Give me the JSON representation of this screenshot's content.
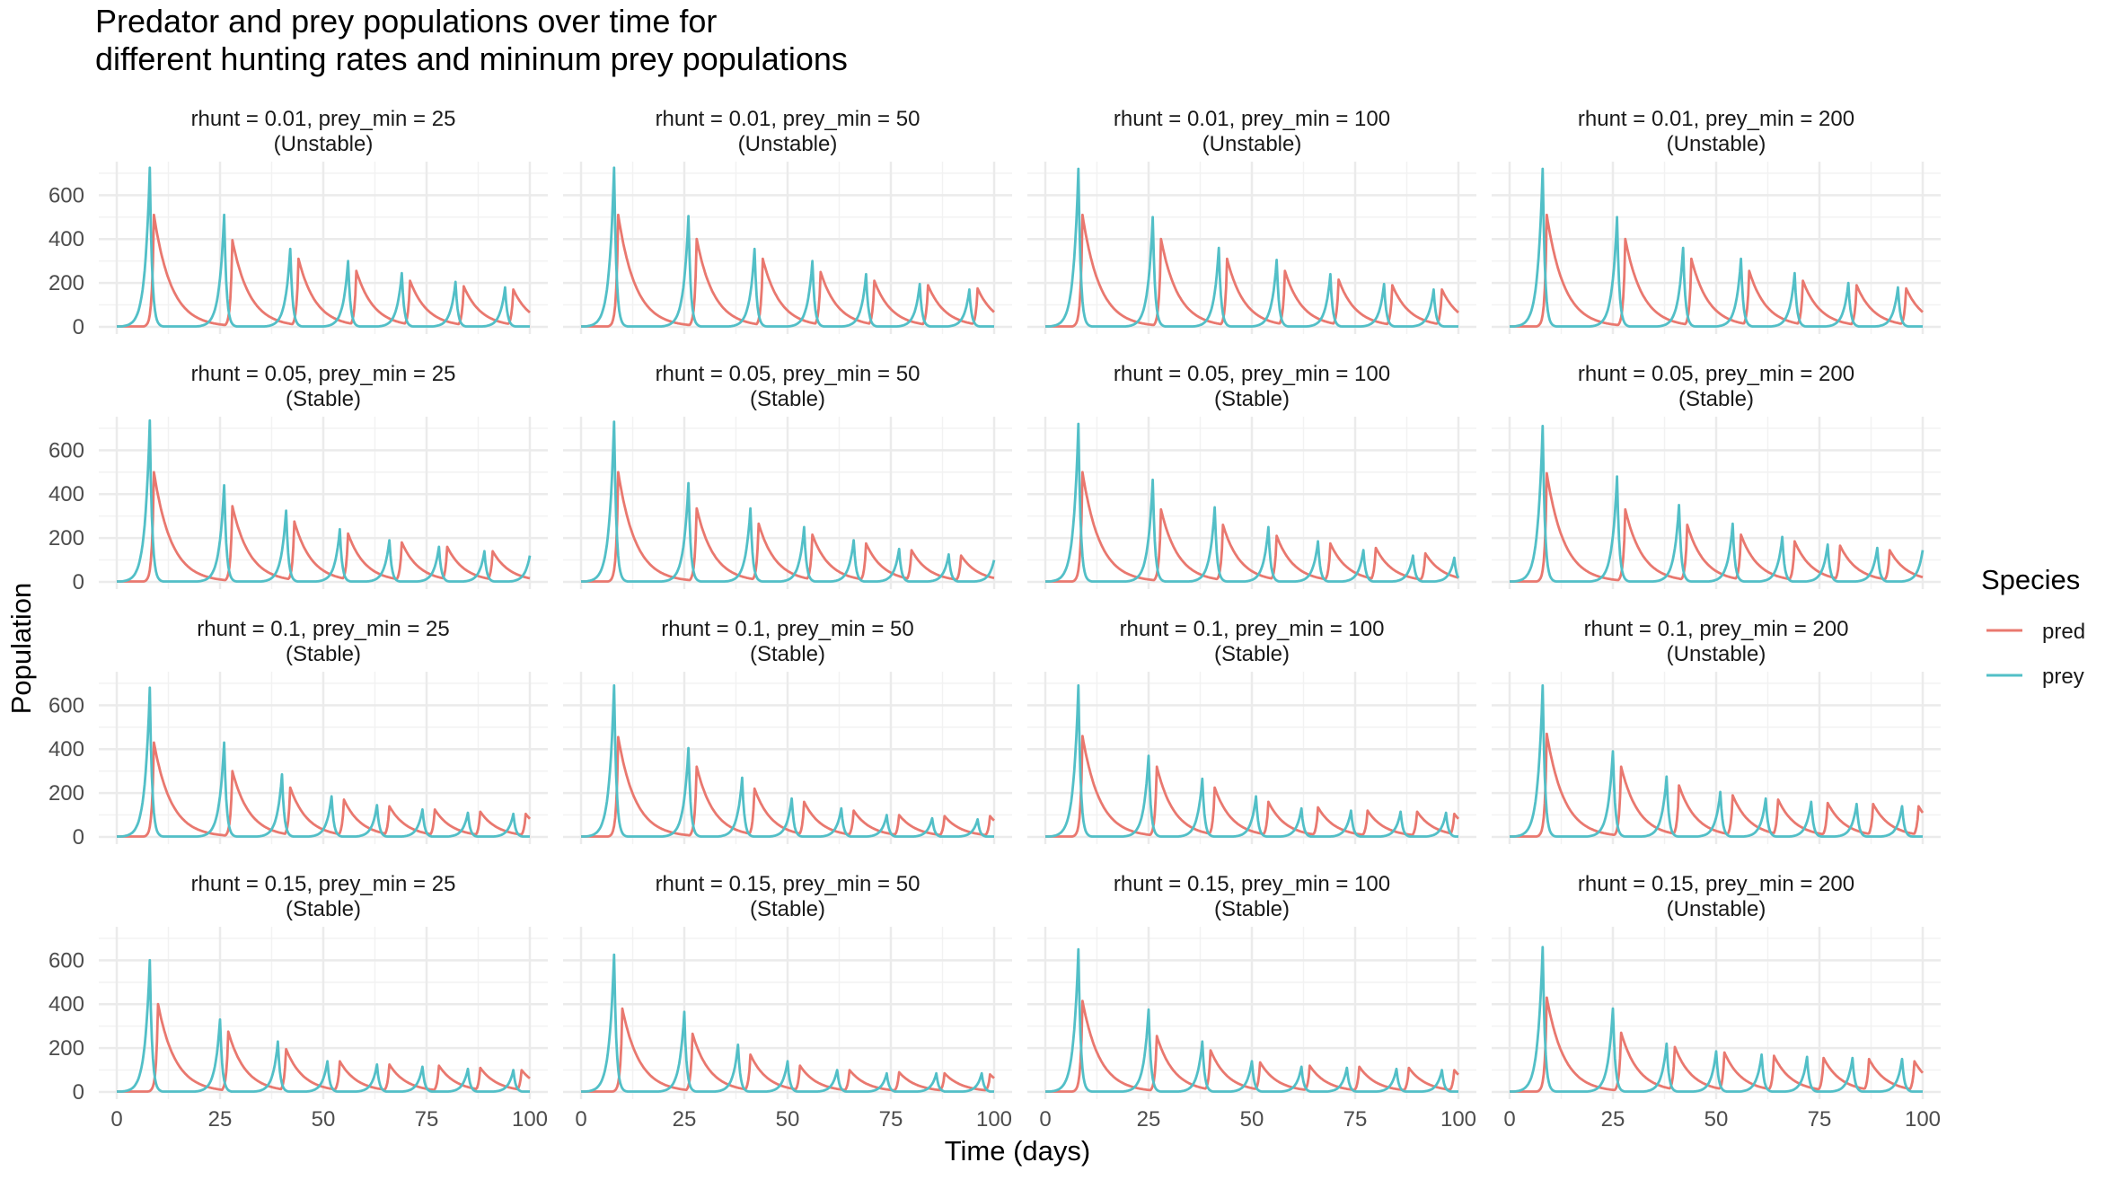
{
  "chart_data": {
    "type": "line",
    "title_lines": [
      "Predator and prey populations over time for",
      "different hunting rates and mininum prey populations"
    ],
    "xlabel": "Time (days)",
    "ylabel": "Population",
    "xlim": [
      0,
      100
    ],
    "ylim": [
      0,
      720
    ],
    "x_ticks": [
      0,
      25,
      50,
      75,
      100
    ],
    "y_ticks": [
      0,
      200,
      400,
      600
    ],
    "grid": true,
    "legend": {
      "title": "Species",
      "position": "right",
      "entries": [
        {
          "name": "pred",
          "color": "#E9786F"
        },
        {
          "name": "prey",
          "color": "#52BFC7"
        }
      ]
    },
    "facets": [
      {
        "label1": "rhunt = 0.01, prey_min = 25",
        "label2": "(Unstable)",
        "prey_peaks": [
          [
            8,
            725
          ],
          [
            26,
            510
          ],
          [
            42,
            355
          ],
          [
            56,
            300
          ],
          [
            69,
            245
          ],
          [
            82,
            205
          ],
          [
            94,
            180
          ]
        ],
        "pred_peaks": [
          [
            9,
            510
          ],
          [
            28,
            395
          ],
          [
            44,
            310
          ],
          [
            58,
            255
          ],
          [
            71,
            210
          ],
          [
            84,
            185
          ],
          [
            96,
            170
          ]
        ]
      },
      {
        "label1": "rhunt = 0.01, prey_min = 50",
        "label2": "(Unstable)",
        "prey_peaks": [
          [
            8,
            725
          ],
          [
            26,
            505
          ],
          [
            42,
            355
          ],
          [
            56,
            300
          ],
          [
            69,
            240
          ],
          [
            82,
            195
          ],
          [
            94,
            170
          ]
        ],
        "pred_peaks": [
          [
            9,
            510
          ],
          [
            28,
            400
          ],
          [
            44,
            310
          ],
          [
            58,
            250
          ],
          [
            71,
            210
          ],
          [
            84,
            190
          ],
          [
            96,
            175
          ]
        ]
      },
      {
        "label1": "rhunt = 0.01, prey_min = 100",
        "label2": "(Unstable)",
        "prey_peaks": [
          [
            8,
            720
          ],
          [
            26,
            500
          ],
          [
            42,
            360
          ],
          [
            56,
            305
          ],
          [
            69,
            240
          ],
          [
            82,
            195
          ],
          [
            94,
            170
          ]
        ],
        "pred_peaks": [
          [
            9,
            510
          ],
          [
            28,
            400
          ],
          [
            44,
            310
          ],
          [
            58,
            255
          ],
          [
            71,
            215
          ],
          [
            84,
            190
          ],
          [
            96,
            170
          ]
        ]
      },
      {
        "label1": "rhunt = 0.01, prey_min = 200",
        "label2": "(Unstable)",
        "prey_peaks": [
          [
            8,
            720
          ],
          [
            26,
            500
          ],
          [
            42,
            360
          ],
          [
            56,
            310
          ],
          [
            69,
            245
          ],
          [
            82,
            200
          ],
          [
            94,
            180
          ]
        ],
        "pred_peaks": [
          [
            9,
            510
          ],
          [
            28,
            400
          ],
          [
            44,
            310
          ],
          [
            58,
            255
          ],
          [
            71,
            210
          ],
          [
            84,
            190
          ],
          [
            96,
            175
          ]
        ]
      },
      {
        "label1": "rhunt = 0.05, prey_min = 25",
        "label2": "(Stable)",
        "prey_peaks": [
          [
            8,
            735
          ],
          [
            26,
            440
          ],
          [
            41,
            325
          ],
          [
            54,
            240
          ],
          [
            66,
            190
          ],
          [
            78,
            160
          ],
          [
            89,
            140
          ],
          [
            100,
            120
          ]
        ],
        "pred_peaks": [
          [
            9,
            500
          ],
          [
            28,
            345
          ],
          [
            43,
            275
          ],
          [
            56,
            220
          ],
          [
            69,
            180
          ],
          [
            80,
            160
          ],
          [
            91,
            140
          ]
        ]
      },
      {
        "label1": "rhunt = 0.05, prey_min = 50",
        "label2": "(Stable)",
        "prey_peaks": [
          [
            8,
            730
          ],
          [
            26,
            450
          ],
          [
            41,
            335
          ],
          [
            54,
            250
          ],
          [
            66,
            190
          ],
          [
            77,
            150
          ],
          [
            89,
            125
          ],
          [
            100,
            100
          ]
        ],
        "pred_peaks": [
          [
            9,
            500
          ],
          [
            28,
            335
          ],
          [
            43,
            265
          ],
          [
            56,
            215
          ],
          [
            69,
            175
          ],
          [
            80,
            145
          ],
          [
            92,
            120
          ]
        ]
      },
      {
        "label1": "rhunt = 0.05, prey_min = 100",
        "label2": "(Stable)",
        "prey_peaks": [
          [
            8,
            720
          ],
          [
            26,
            465
          ],
          [
            41,
            340
          ],
          [
            54,
            250
          ],
          [
            66,
            185
          ],
          [
            77,
            145
          ],
          [
            89,
            120
          ],
          [
            99,
            110
          ]
        ],
        "pred_peaks": [
          [
            9,
            500
          ],
          [
            28,
            330
          ],
          [
            43,
            260
          ],
          [
            56,
            210
          ],
          [
            69,
            175
          ],
          [
            80,
            155
          ],
          [
            92,
            130
          ]
        ]
      },
      {
        "label1": "rhunt = 0.05, prey_min = 200",
        "label2": "(Stable)",
        "prey_peaks": [
          [
            8,
            710
          ],
          [
            26,
            480
          ],
          [
            41,
            350
          ],
          [
            54,
            265
          ],
          [
            66,
            205
          ],
          [
            77,
            170
          ],
          [
            89,
            155
          ],
          [
            100,
            145
          ]
        ],
        "pred_peaks": [
          [
            9,
            495
          ],
          [
            28,
            330
          ],
          [
            43,
            260
          ],
          [
            56,
            215
          ],
          [
            69,
            185
          ],
          [
            80,
            165
          ],
          [
            92,
            145
          ]
        ]
      },
      {
        "label1": "rhunt = 0.1, prey_min = 25",
        "label2": "(Stable)",
        "prey_peaks": [
          [
            8,
            680
          ],
          [
            26,
            430
          ],
          [
            40,
            285
          ],
          [
            52,
            185
          ],
          [
            63,
            145
          ],
          [
            74,
            125
          ],
          [
            85,
            110
          ],
          [
            96,
            105
          ]
        ],
        "pred_peaks": [
          [
            9,
            430
          ],
          [
            28,
            300
          ],
          [
            42,
            225
          ],
          [
            55,
            170
          ],
          [
            66,
            140
          ],
          [
            77,
            125
          ],
          [
            88,
            115
          ],
          [
            99,
            105
          ]
        ]
      },
      {
        "label1": "rhunt = 0.1, prey_min = 50",
        "label2": "(Stable)",
        "prey_peaks": [
          [
            8,
            690
          ],
          [
            26,
            405
          ],
          [
            39,
            270
          ],
          [
            51,
            175
          ],
          [
            63,
            130
          ],
          [
            74,
            100
          ],
          [
            85,
            85
          ],
          [
            96,
            80
          ]
        ],
        "pred_peaks": [
          [
            9,
            455
          ],
          [
            28,
            320
          ],
          [
            42,
            220
          ],
          [
            54,
            160
          ],
          [
            66,
            120
          ],
          [
            77,
            100
          ],
          [
            88,
            95
          ],
          [
            99,
            95
          ]
        ]
      },
      {
        "label1": "rhunt = 0.1, prey_min = 100",
        "label2": "(Stable)",
        "prey_peaks": [
          [
            8,
            690
          ],
          [
            25,
            370
          ],
          [
            38,
            265
          ],
          [
            51,
            185
          ],
          [
            62,
            130
          ],
          [
            74,
            120
          ],
          [
            86,
            115
          ],
          [
            97,
            110
          ]
        ],
        "pred_peaks": [
          [
            9,
            460
          ],
          [
            27,
            320
          ],
          [
            41,
            225
          ],
          [
            54,
            160
          ],
          [
            66,
            135
          ],
          [
            78,
            120
          ],
          [
            90,
            115
          ],
          [
            99,
            105
          ]
        ]
      },
      {
        "label1": "rhunt = 0.1, prey_min = 200",
        "label2": "(Unstable)",
        "prey_peaks": [
          [
            8,
            690
          ],
          [
            25,
            390
          ],
          [
            38,
            275
          ],
          [
            51,
            205
          ],
          [
            62,
            175
          ],
          [
            73,
            160
          ],
          [
            84,
            150
          ],
          [
            95,
            140
          ]
        ],
        "pred_peaks": [
          [
            9,
            470
          ],
          [
            27,
            320
          ],
          [
            41,
            235
          ],
          [
            54,
            190
          ],
          [
            65,
            170
          ],
          [
            77,
            155
          ],
          [
            88,
            150
          ],
          [
            99,
            140
          ]
        ]
      },
      {
        "label1": "rhunt = 0.15, prey_min = 25",
        "label2": "(Stable)",
        "prey_peaks": [
          [
            8,
            600
          ],
          [
            25,
            330
          ],
          [
            39,
            230
          ],
          [
            51,
            140
          ],
          [
            63,
            125
          ],
          [
            74,
            115
          ],
          [
            85,
            105
          ],
          [
            96,
            100
          ]
        ],
        "pred_peaks": [
          [
            10,
            400
          ],
          [
            27,
            275
          ],
          [
            41,
            195
          ],
          [
            54,
            140
          ],
          [
            66,
            125
          ],
          [
            78,
            120
          ],
          [
            88,
            110
          ],
          [
            98,
            100
          ]
        ]
      },
      {
        "label1": "rhunt = 0.15, prey_min = 50",
        "label2": "(Stable)",
        "prey_peaks": [
          [
            8,
            625
          ],
          [
            25,
            365
          ],
          [
            38,
            215
          ],
          [
            50,
            140
          ],
          [
            62,
            100
          ],
          [
            74,
            85
          ],
          [
            86,
            85
          ],
          [
            97,
            85
          ]
        ],
        "pred_peaks": [
          [
            10,
            380
          ],
          [
            27,
            265
          ],
          [
            41,
            170
          ],
          [
            53,
            120
          ],
          [
            65,
            100
          ],
          [
            77,
            90
          ],
          [
            88,
            85
          ],
          [
            99,
            80
          ]
        ]
      },
      {
        "label1": "rhunt = 0.15, prey_min = 100",
        "label2": "(Stable)",
        "prey_peaks": [
          [
            8,
            650
          ],
          [
            25,
            375
          ],
          [
            38,
            230
          ],
          [
            50,
            140
          ],
          [
            62,
            115
          ],
          [
            73,
            110
          ],
          [
            85,
            105
          ],
          [
            96,
            100
          ]
        ],
        "pred_peaks": [
          [
            9,
            415
          ],
          [
            27,
            255
          ],
          [
            40,
            190
          ],
          [
            52,
            135
          ],
          [
            64,
            120
          ],
          [
            76,
            115
          ],
          [
            88,
            110
          ],
          [
            99,
            100
          ]
        ]
      },
      {
        "label1": "rhunt = 0.15, prey_min = 200",
        "label2": "(Unstable)",
        "prey_peaks": [
          [
            8,
            660
          ],
          [
            25,
            380
          ],
          [
            38,
            220
          ],
          [
            50,
            185
          ],
          [
            61,
            170
          ],
          [
            72,
            160
          ],
          [
            83,
            155
          ],
          [
            95,
            150
          ]
        ],
        "pred_peaks": [
          [
            9,
            430
          ],
          [
            27,
            270
          ],
          [
            40,
            205
          ],
          [
            52,
            180
          ],
          [
            64,
            165
          ],
          [
            76,
            155
          ],
          [
            87,
            150
          ],
          [
            98,
            140
          ]
        ]
      }
    ]
  }
}
